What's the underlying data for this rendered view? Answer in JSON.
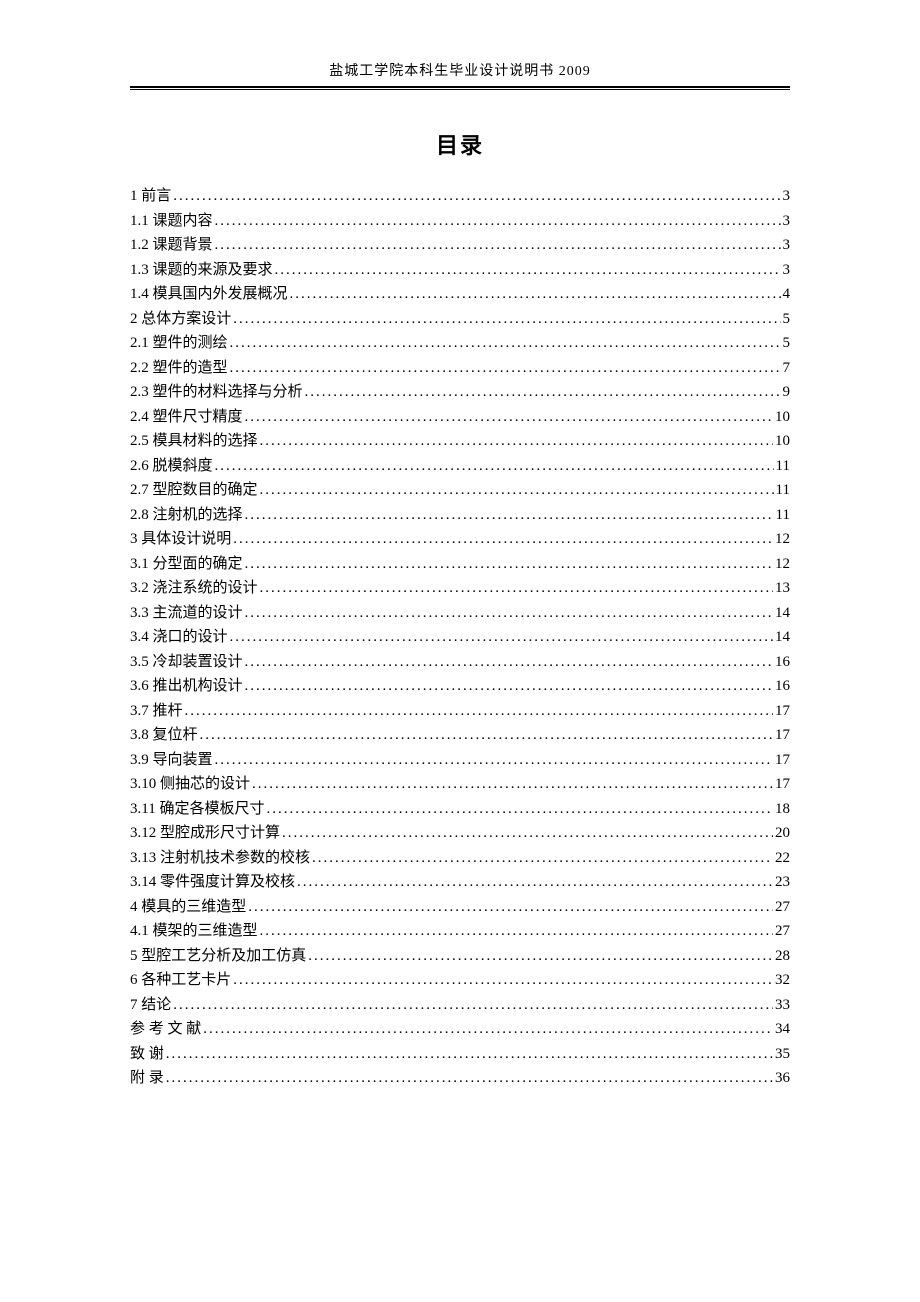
{
  "header": "盐城工学院本科生毕业设计说明书   2009",
  "title": "目录",
  "toc": [
    {
      "label": "1 前言",
      "page": "3"
    },
    {
      "label": "1.1 课题内容",
      "page": "3"
    },
    {
      "label": "1.2 课题背景",
      "page": "3"
    },
    {
      "label": "1.3 课题的来源及要求",
      "page": "3"
    },
    {
      "label": "1.4 模具国内外发展概况",
      "page": "4"
    },
    {
      "label": "2 总体方案设计",
      "page": "5"
    },
    {
      "label": "2.1 塑件的测绘",
      "page": "5"
    },
    {
      "label": "2.2 塑件的造型",
      "page": "7"
    },
    {
      "label": "2.3 塑件的材料选择与分析",
      "page": "9"
    },
    {
      "label": "2.4 塑件尺寸精度",
      "page": "10"
    },
    {
      "label": "2.5 模具材料的选择",
      "page": "10"
    },
    {
      "label": "2.6 脱模斜度",
      "page": "11"
    },
    {
      "label": "2.7 型腔数目的确定",
      "page": "11"
    },
    {
      "label": "2.8 注射机的选择",
      "page": "11"
    },
    {
      "label": "3 具体设计说明",
      "page": "12"
    },
    {
      "label": "3.1 分型面的确定",
      "page": "12"
    },
    {
      "label": "3.2 浇注系统的设计",
      "page": "13"
    },
    {
      "label": "3.3 主流道的设计",
      "page": "14"
    },
    {
      "label": "3.4 浇口的设计",
      "page": "14"
    },
    {
      "label": "3.5 冷却装置设计",
      "page": "16"
    },
    {
      "label": "3.6 推出机构设计",
      "page": "16"
    },
    {
      "label": "3.7   推杆",
      "page": "17"
    },
    {
      "label": "3.8   复位杆",
      "page": "17"
    },
    {
      "label": "3.9   导向装置",
      "page": "17"
    },
    {
      "label": "3.10   侧抽芯的设计",
      "page": "17"
    },
    {
      "label": "3.11 确定各模板尺寸",
      "page": "18"
    },
    {
      "label": "3.12 型腔成形尺寸计算",
      "page": "20"
    },
    {
      "label": "3.13 注射机技术参数的校核",
      "page": "22"
    },
    {
      "label": "3.14 零件强度计算及校核",
      "page": "23"
    },
    {
      "label": "4 模具的三维造型",
      "page": "27"
    },
    {
      "label": "4.1 模架的三维造型",
      "page": "27"
    },
    {
      "label": "5 型腔工艺分析及加工仿真",
      "page": "28"
    },
    {
      "label": "6 各种工艺卡片",
      "page": "32"
    },
    {
      "label": "7 结论",
      "page": "33"
    },
    {
      "label": "参 考 文 献",
      "page": "34"
    },
    {
      "label": "致       谢",
      "page": "35"
    },
    {
      "label": "附       录",
      "page": "36"
    }
  ]
}
